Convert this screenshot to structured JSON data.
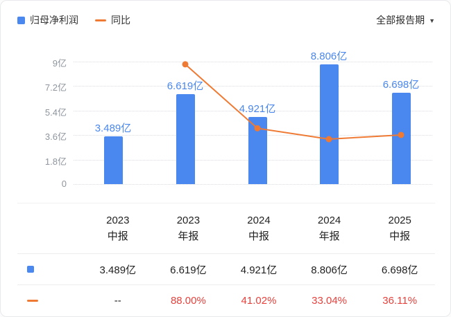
{
  "legend": {
    "profit_label": "归母净利润",
    "yoy_label": "同比"
  },
  "filter": {
    "label": "全部报告期"
  },
  "colors": {
    "bar": "#4a87ee",
    "bar_label": "#4a87ee",
    "line": "#ef7a33",
    "highlight_red": "#e8413c",
    "axis_gray": "#8e959e"
  },
  "chart_data": {
    "type": "bar+line",
    "title": "",
    "categories": [
      "2023 中报",
      "2023 年报",
      "2024 中报",
      "2024 年报",
      "2025 中报"
    ],
    "series": [
      {
        "name": "归母净利润",
        "type": "bar",
        "unit": "亿",
        "values": [
          3.489,
          6.619,
          4.921,
          8.806,
          6.698
        ],
        "labels": [
          "3.489亿",
          "6.619亿",
          "4.921亿",
          "8.806亿",
          "6.698亿"
        ]
      },
      {
        "name": "同比",
        "type": "line",
        "unit": "%",
        "values": [
          null,
          88.0,
          41.02,
          33.04,
          36.11
        ]
      }
    ],
    "y_axis": {
      "ticks": [
        "9亿",
        "7.2亿",
        "5.4亿",
        "3.6亿",
        "1.8亿",
        "0"
      ],
      "tick_values": [
        9,
        7.2,
        5.4,
        3.6,
        1.8,
        0
      ],
      "max": 9
    },
    "grid": "dotted-horizontal",
    "legend_position": "top-left"
  },
  "table": {
    "headers": [
      [
        "2023",
        "中报"
      ],
      [
        "2023",
        "年报"
      ],
      [
        "2024",
        "中报"
      ],
      [
        "2024",
        "年报"
      ],
      [
        "2025",
        "中报"
      ]
    ],
    "rows": [
      {
        "icon": "bar-series-swatch",
        "values": [
          "3.489亿",
          "6.619亿",
          "4.921亿",
          "8.806亿",
          "6.698亿"
        ],
        "highlight": false
      },
      {
        "icon": "line-series-swatch",
        "values": [
          "--",
          "88.00%",
          "41.02%",
          "33.04%",
          "36.11%"
        ],
        "highlight": true
      }
    ]
  }
}
